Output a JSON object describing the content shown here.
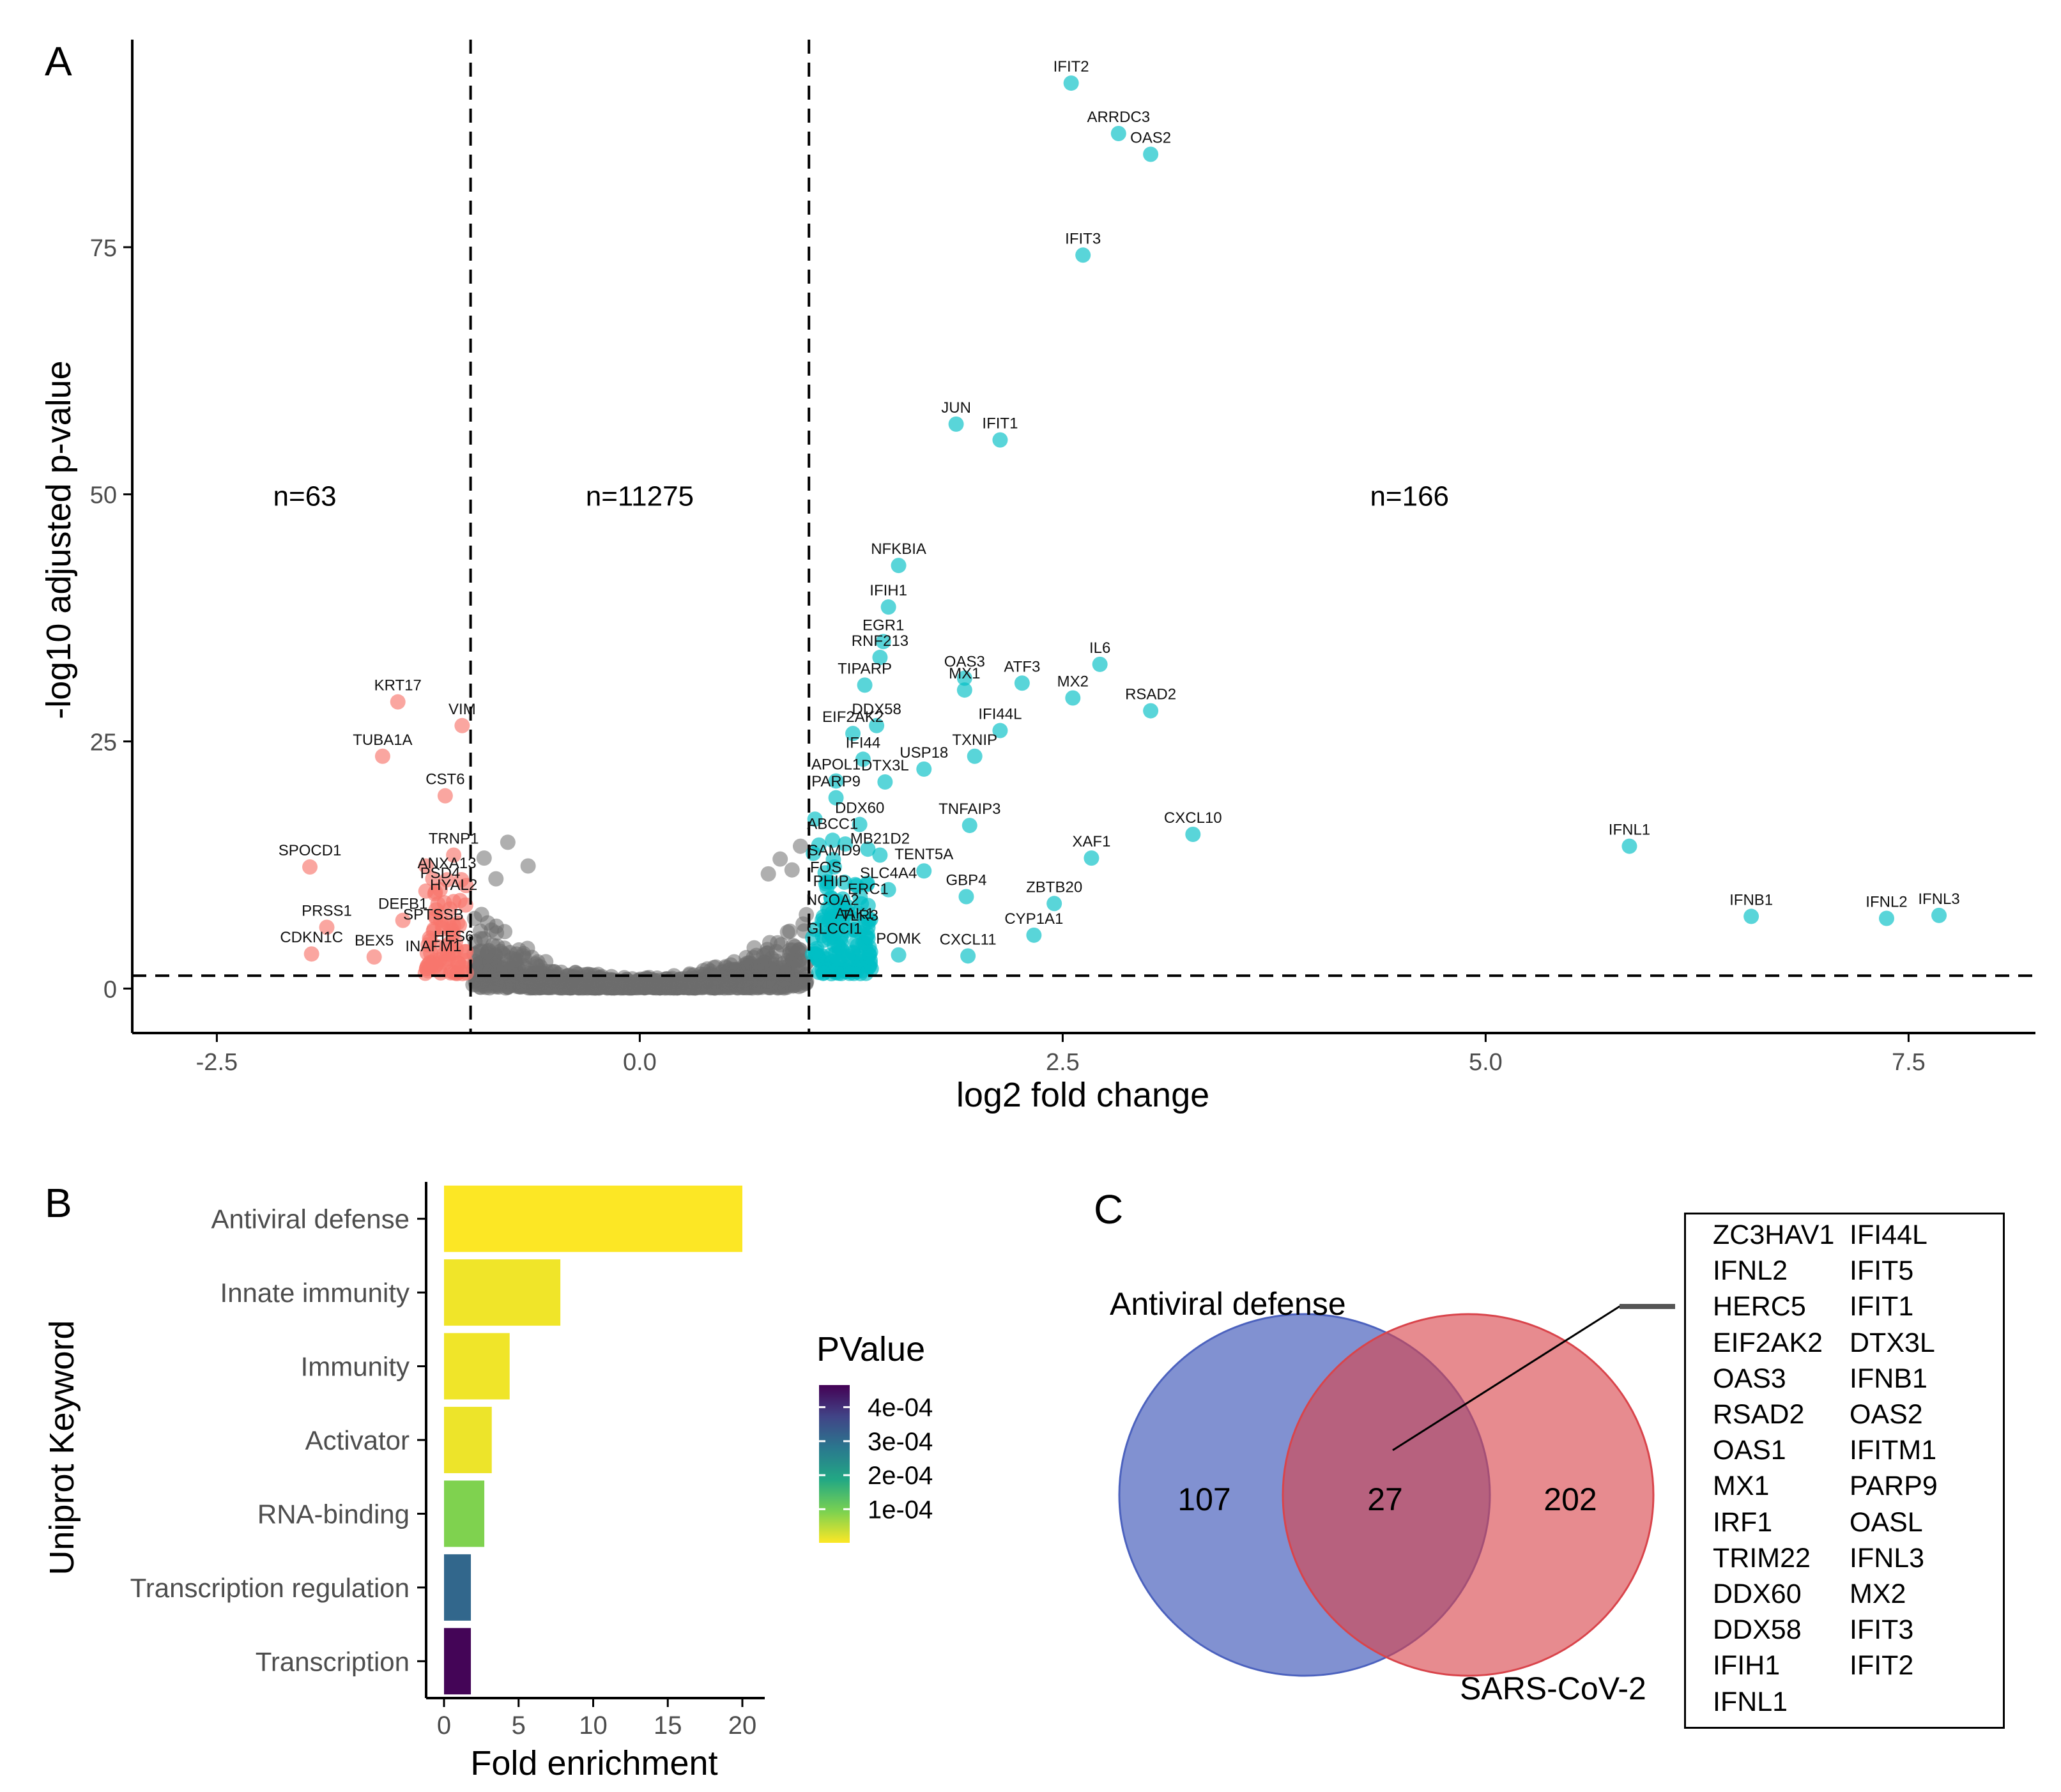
{
  "panels": {
    "a": "A",
    "b": "B",
    "c": "C"
  },
  "chart_data": [
    {
      "type": "scatter",
      "xlabel": "log2 fold change",
      "ylabel": "-log10 adjusted p-value",
      "xlim": [
        -3.0,
        8.25
      ],
      "ylim": [
        -4.5,
        96
      ],
      "xticks": [
        -2.5,
        0.0,
        2.5,
        5.0,
        7.5
      ],
      "xtick_labels": [
        "-2.5",
        "0.0",
        "2.5",
        "5.0",
        "7.5"
      ],
      "yticks": [
        0,
        25,
        50,
        75
      ],
      "ytick_labels": [
        "0",
        "25",
        "50",
        "75"
      ],
      "thresholds": {
        "x": [
          -1,
          1
        ],
        "y": 1.3
      },
      "counts": [
        {
          "label": "n=63",
          "x": -1.98,
          "y": 50
        },
        {
          "label": "n=11275",
          "x": 0.0,
          "y": 50
        },
        {
          "label": "n=166",
          "x": 4.55,
          "y": 50
        }
      ],
      "colors": {
        "down": "#F8766D",
        "up": "#00BFC4",
        "ns": "#6E6E6E"
      },
      "series": [
        {
          "group": "up",
          "points": [
            {
              "x": 2.55,
              "y": 91.6,
              "label": "IFIT2"
            },
            {
              "x": 2.83,
              "y": 86.5,
              "label": "ARRDC3"
            },
            {
              "x": 3.02,
              "y": 84.4,
              "label": "OAS2"
            },
            {
              "x": 2.62,
              "y": 74.2,
              "label": "IFIT3"
            },
            {
              "x": 1.87,
              "y": 57.1,
              "label": "JUN"
            },
            {
              "x": 2.13,
              "y": 55.5,
              "label": "IFIT1"
            },
            {
              "x": 1.53,
              "y": 42.8,
              "label": "NFKBIA"
            },
            {
              "x": 1.47,
              "y": 38.6,
              "label": "IFIH1"
            },
            {
              "x": 1.44,
              "y": 35.1,
              "label": "EGR1"
            },
            {
              "x": 1.42,
              "y": 33.5,
              "label": "RNF213"
            },
            {
              "x": 1.92,
              "y": 31.4,
              "label": "OAS3"
            },
            {
              "x": 1.92,
              "y": 30.2,
              "label": "MX1"
            },
            {
              "x": 2.26,
              "y": 30.9,
              "label": "ATF3"
            },
            {
              "x": 2.72,
              "y": 32.8,
              "label": "IL6"
            },
            {
              "x": 2.56,
              "y": 29.4,
              "label": "MX2"
            },
            {
              "x": 3.02,
              "y": 28.1,
              "label": "RSAD2"
            },
            {
              "x": 1.33,
              "y": 30.7,
              "label": "TIPARP"
            },
            {
              "x": 1.4,
              "y": 26.6,
              "label": "DDX58"
            },
            {
              "x": 1.26,
              "y": 25.8,
              "label": "EIF2AK2"
            },
            {
              "x": 2.13,
              "y": 26.1,
              "label": "IFI44L"
            },
            {
              "x": 1.32,
              "y": 23.2,
              "label": "IFI44"
            },
            {
              "x": 1.98,
              "y": 23.5,
              "label": "TXNIP"
            },
            {
              "x": 1.16,
              "y": 21.0,
              "label": "APOL1"
            },
            {
              "x": 1.68,
              "y": 22.2,
              "label": "USP18"
            },
            {
              "x": 1.45,
              "y": 20.9,
              "label": "DTX3L"
            },
            {
              "x": 1.16,
              "y": 19.3,
              "label": "PARP9"
            },
            {
              "x": 1.3,
              "y": 16.6,
              "label": "DDX60"
            },
            {
              "x": 1.95,
              "y": 16.5,
              "label": "TNFAIP3"
            },
            {
              "x": 3.27,
              "y": 15.6,
              "label": "CXCL10"
            },
            {
              "x": 1.14,
              "y": 15.0,
              "label": "ABCC1"
            },
            {
              "x": 1.42,
              "y": 13.5,
              "label": "MB21D2"
            },
            {
              "x": 1.15,
              "y": 12.3,
              "label": "SAMD9"
            },
            {
              "x": 2.67,
              "y": 13.2,
              "label": "XAF1"
            },
            {
              "x": 1.68,
              "y": 11.9,
              "label": "TENT5A"
            },
            {
              "x": 1.1,
              "y": 10.6,
              "label": "FOS"
            },
            {
              "x": 5.85,
              "y": 14.4,
              "label": "IFNL1"
            },
            {
              "x": 1.47,
              "y": 10.0,
              "label": "SLC4A4"
            },
            {
              "x": 1.13,
              "y": 9.2,
              "label": "PHIP"
            },
            {
              "x": 1.93,
              "y": 9.3,
              "label": "GBP4"
            },
            {
              "x": 2.45,
              "y": 8.6,
              "label": "ZBTB20"
            },
            {
              "x": 1.35,
              "y": 8.4,
              "label": "ERC1"
            },
            {
              "x": 1.14,
              "y": 7.3,
              "label": "NCOA2"
            },
            {
              "x": 6.57,
              "y": 7.3,
              "label": "IFNB1"
            },
            {
              "x": 7.37,
              "y": 7.1,
              "label": "IFNL2"
            },
            {
              "x": 7.68,
              "y": 7.4,
              "label": "IFNL3"
            },
            {
              "x": 1.27,
              "y": 5.9,
              "label": "AAK1"
            },
            {
              "x": 1.3,
              "y": 5.7,
              "label": "TLR3"
            },
            {
              "x": 2.33,
              "y": 5.4,
              "label": "CYP1A1"
            },
            {
              "x": 1.15,
              "y": 4.4,
              "label": "GLCCI1"
            },
            {
              "x": 1.53,
              "y": 3.4,
              "label": "POMK"
            },
            {
              "x": 1.94,
              "y": 3.3,
              "label": "CXCL11"
            }
          ]
        },
        {
          "group": "down",
          "points": [
            {
              "x": -1.43,
              "y": 29.0,
              "label": "KRT17"
            },
            {
              "x": -1.05,
              "y": 26.6,
              "label": "VIM"
            },
            {
              "x": -1.52,
              "y": 23.5,
              "label": "TUBA1A"
            },
            {
              "x": -1.15,
              "y": 19.5,
              "label": "CST6"
            },
            {
              "x": -1.95,
              "y": 12.3,
              "label": "SPOCD1"
            },
            {
              "x": -1.1,
              "y": 13.5,
              "label": "TRNP1"
            },
            {
              "x": -1.14,
              "y": 11.0,
              "label": "ANXA13"
            },
            {
              "x": -1.18,
              "y": 10.0,
              "label": "PSD4"
            },
            {
              "x": -1.1,
              "y": 8.8,
              "label": "HYAL2"
            },
            {
              "x": -1.4,
              "y": 6.9,
              "label": "DEFB1"
            },
            {
              "x": -1.85,
              "y": 6.2,
              "label": "PRSS1"
            },
            {
              "x": -1.22,
              "y": 5.8,
              "label": "SPTSSB"
            },
            {
              "x": -1.94,
              "y": 3.5,
              "label": "CDKN1C"
            },
            {
              "x": -1.57,
              "y": 3.2,
              "label": "BEX5"
            },
            {
              "x": -1.1,
              "y": 3.6,
              "label": "HES6"
            },
            {
              "x": -1.22,
              "y": 2.6,
              "label": "INAFM1"
            }
          ]
        }
      ]
    },
    {
      "type": "bar",
      "orientation": "horizontal",
      "xlabel": "Fold enrichment",
      "ylabel": "Uniprot Keyword",
      "xlim": [
        -1.2,
        21.5
      ],
      "xticks": [
        0,
        5,
        10,
        15,
        20
      ],
      "xtick_labels": [
        "0",
        "5",
        "10",
        "15",
        "20"
      ],
      "categories": [
        "Antiviral defense",
        "Innate immunity",
        "Immunity",
        "Activator",
        "RNA-binding",
        "Transcription regulation",
        "Transcription"
      ],
      "values": [
        20.0,
        7.8,
        4.4,
        3.2,
        2.7,
        1.8,
        1.8
      ],
      "pvalues": [
        2e-06,
        1e-05,
        1e-05,
        1.2e-05,
        9e-05,
        0.00031,
        0.00046
      ],
      "legend": {
        "title": "PValue",
        "placement": "right",
        "range": [
          1e-06,
          0.000465
        ],
        "ticks": [
          0.0001,
          0.0002,
          0.0003,
          0.0004
        ],
        "tick_labels": [
          "1e-04",
          "2e-04",
          "3e-04",
          "4e-04"
        ],
        "colors": [
          "#FDE725",
          "#7AD151",
          "#22A884",
          "#2A788E",
          "#414487",
          "#440154"
        ]
      }
    },
    {
      "type": "venn",
      "sets": [
        {
          "label": "Antiviral defense",
          "only": "107",
          "color": "#4C62BE"
        },
        {
          "label": "SARS-CoV-2",
          "only": "202",
          "color": "#D9444B"
        }
      ],
      "overlap": "27",
      "overlap_genes": [
        [
          "ZC3HAV1",
          "IFI44L"
        ],
        [
          "IFNL2",
          "IFIT5"
        ],
        [
          "HERC5",
          "IFIT1"
        ],
        [
          "EIF2AK2",
          "DTX3L"
        ],
        [
          "OAS3",
          "IFNB1"
        ],
        [
          "RSAD2",
          "OAS2"
        ],
        [
          "OAS1",
          "IFITM1"
        ],
        [
          "MX1",
          "PARP9"
        ],
        [
          "IRF1",
          "OASL"
        ],
        [
          "TRIM22",
          "IFNL3"
        ],
        [
          "DDX60",
          "MX2"
        ],
        [
          "DDX58",
          "IFIT3"
        ],
        [
          "IFIH1",
          "IFIT2"
        ],
        [
          "IFNL1",
          ""
        ]
      ]
    }
  ]
}
